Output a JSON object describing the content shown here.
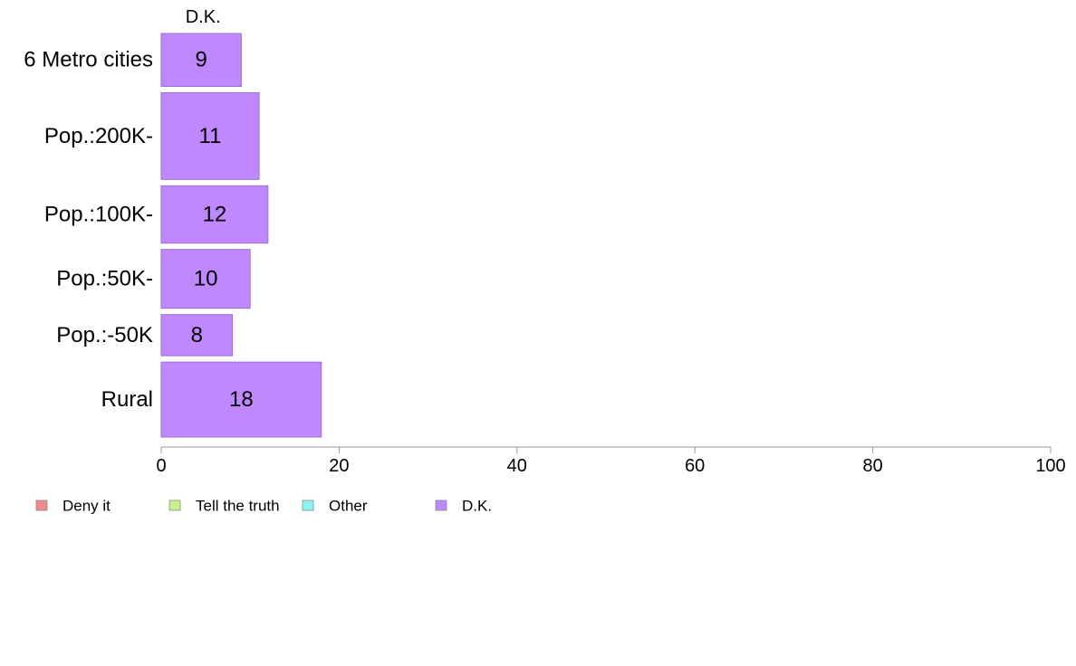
{
  "chart_data": {
    "type": "bar",
    "orientation": "horizontal",
    "stacked": true,
    "categories": [
      "6 Metro cities",
      "Pop.:200K-",
      "Pop.:100K-",
      "Pop.:50K-",
      "Pop.:-50K",
      "Rural"
    ],
    "category_weights": [
      0.72,
      1.18,
      0.78,
      0.8,
      0.56,
      1.02
    ],
    "series": [
      {
        "name": "Deny it",
        "color": "#f28b8b",
        "values": [
          0,
          0,
          0,
          0,
          0,
          0
        ]
      },
      {
        "name": "Tell the truth",
        "color": "#c6f28b",
        "values": [
          0,
          0,
          0,
          0,
          0,
          0
        ]
      },
      {
        "name": "Other",
        "color": "#8bf5f5",
        "values": [
          0,
          0,
          0,
          0,
          0,
          0
        ]
      },
      {
        "name": "D.K.",
        "color": "#bf88ff",
        "values": [
          9,
          11,
          12,
          10,
          8,
          18
        ]
      }
    ],
    "visible_series_title": "D.K.",
    "xlim": [
      0,
      100
    ],
    "xticks": [
      0,
      20,
      40,
      60,
      80,
      100
    ],
    "grid": false,
    "legend_position": "bottom-left"
  }
}
